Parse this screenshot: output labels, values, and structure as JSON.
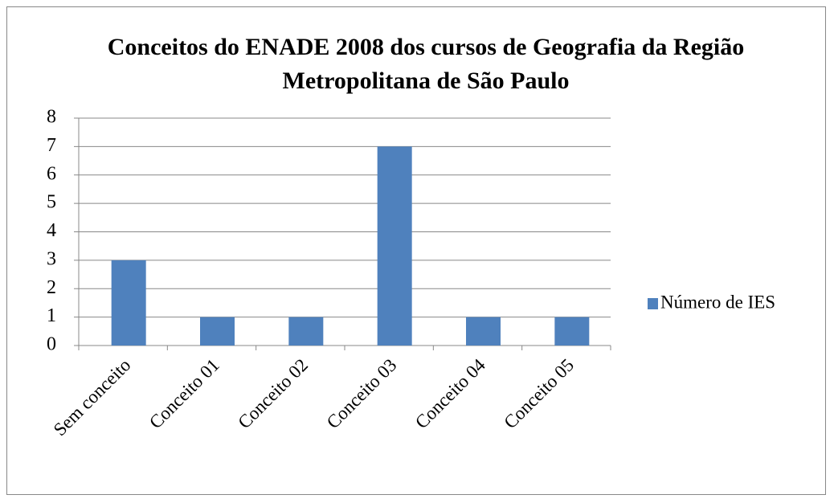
{
  "chart_data": {
    "type": "bar",
    "title": "Conceitos do ENADE 2008 dos cursos de Geografia da Região Metropolitana de São Paulo",
    "categories": [
      "Sem conceito",
      "Conceito 01",
      "Conceito 02",
      "Conceito 03",
      "Conceito 04",
      "Conceito 05"
    ],
    "series": [
      {
        "name": "Número de IES",
        "color": "#4f81bd",
        "values": [
          3,
          1,
          1,
          7,
          1,
          1
        ]
      }
    ],
    "ylim": [
      0,
      8
    ],
    "yticks": [
      0,
      1,
      2,
      3,
      4,
      5,
      6,
      7,
      8
    ],
    "grid": true,
    "legend": "right"
  }
}
